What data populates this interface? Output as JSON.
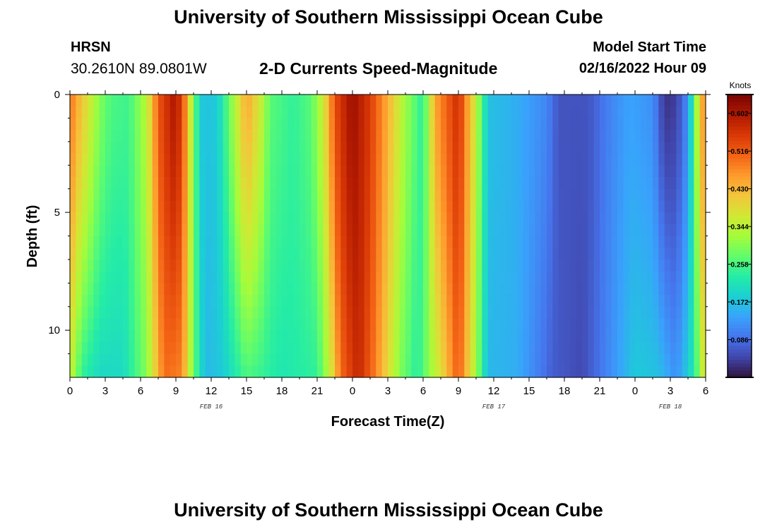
{
  "header": {
    "title": "University of Southern Mississippi Ocean Cube",
    "station_id": "HRSN",
    "station_coords": "30.2610N  89.0801W",
    "subtitle": "2-D Currents Speed-Magnitude",
    "model_start_label": "Model Start Time",
    "model_start_value": "02/16/2022 Hour 09"
  },
  "footer": {
    "title": "University of Southern Mississippi Ocean Cube"
  },
  "chart_data": {
    "type": "heatmap",
    "title": "2-D Currents Speed-Magnitude",
    "xlabel": "Forecast Time(Z)",
    "ylabel": "Depth (ft)",
    "x_start": "02/16/2022 00Z",
    "x_range_hours": [
      0,
      54
    ],
    "x_tick_labels": [
      "0",
      "3",
      "6",
      "9",
      "12",
      "15",
      "18",
      "21",
      "0",
      "3",
      "6",
      "9",
      "12",
      "15",
      "18",
      "21",
      "0",
      "3",
      "6"
    ],
    "date_labels": [
      {
        "label": "FEB 16",
        "hour": 12
      },
      {
        "label": "FEB 17",
        "hour": 36
      },
      {
        "label": "FEB 18",
        "hour": 51
      }
    ],
    "y_range_ft": [
      0,
      12
    ],
    "y_reversed": true,
    "y_tick_labels": [
      "0",
      "5",
      "10"
    ],
    "colorbar": {
      "label": "Knots",
      "range": [
        0.0,
        0.645
      ],
      "tick_labels": [
        "0.602",
        "0.516",
        "0.430",
        "0.344",
        "0.258",
        "0.172",
        "0.086"
      ],
      "colors": [
        "#30123b",
        "#4145ab",
        "#4675ed",
        "#39a2fc",
        "#1bcfd4",
        "#24eca6",
        "#61fc6c",
        "#a4fc3b",
        "#d1e834",
        "#f3c63a",
        "#fe9b2d",
        "#f36315",
        "#d93806",
        "#b11901",
        "#7a0403"
      ]
    },
    "surface_speed_knots": [
      {
        "hour": 0,
        "value": 0.5
      },
      {
        "hour": 0.5,
        "value": 0.45
      },
      {
        "hour": 1.5,
        "value": 0.38
      },
      {
        "hour": 2.5,
        "value": 0.3
      },
      {
        "hour": 3.5,
        "value": 0.26
      },
      {
        "hour": 5,
        "value": 0.25
      },
      {
        "hour": 6.5,
        "value": 0.34
      },
      {
        "hour": 7.5,
        "value": 0.52
      },
      {
        "hour": 9,
        "value": 0.61
      },
      {
        "hour": 10,
        "value": 0.45
      },
      {
        "hour": 10.5,
        "value": 0.28
      },
      {
        "hour": 11.3,
        "value": 0.17
      },
      {
        "hour": 12.5,
        "value": 0.18
      },
      {
        "hour": 13.5,
        "value": 0.28
      },
      {
        "hour": 15,
        "value": 0.45
      },
      {
        "hour": 16,
        "value": 0.38
      },
      {
        "hour": 17,
        "value": 0.27
      },
      {
        "hour": 19,
        "value": 0.24
      },
      {
        "hour": 20.5,
        "value": 0.27
      },
      {
        "hour": 21.5,
        "value": 0.36
      },
      {
        "hour": 22.5,
        "value": 0.53
      },
      {
        "hour": 24,
        "value": 0.62
      },
      {
        "hour": 25.5,
        "value": 0.55
      },
      {
        "hour": 27,
        "value": 0.44
      },
      {
        "hour": 28.5,
        "value": 0.32
      },
      {
        "hour": 30,
        "value": 0.23
      },
      {
        "hour": 31,
        "value": 0.45
      },
      {
        "hour": 33,
        "value": 0.57
      },
      {
        "hour": 34.5,
        "value": 0.35
      },
      {
        "hour": 35.5,
        "value": 0.17
      },
      {
        "hour": 38,
        "value": 0.15
      },
      {
        "hour": 40.5,
        "value": 0.11
      },
      {
        "hour": 41.5,
        "value": 0.06
      },
      {
        "hour": 44,
        "value": 0.06
      },
      {
        "hour": 46,
        "value": 0.11
      },
      {
        "hour": 47.5,
        "value": 0.14
      },
      {
        "hour": 49.5,
        "value": 0.12
      },
      {
        "hour": 50.5,
        "value": 0.03
      },
      {
        "hour": 51.5,
        "value": 0.04
      },
      {
        "hour": 52.5,
        "value": 0.12
      },
      {
        "hour": 53.5,
        "value": 0.4
      },
      {
        "hour": 54,
        "value": 0.5
      }
    ],
    "bottom_speed_knots": [
      {
        "hour": 0,
        "value": 0.36
      },
      {
        "hour": 1,
        "value": 0.24
      },
      {
        "hour": 2.5,
        "value": 0.2
      },
      {
        "hour": 4.5,
        "value": 0.2
      },
      {
        "hour": 6.5,
        "value": 0.3
      },
      {
        "hour": 8,
        "value": 0.5
      },
      {
        "hour": 9.5,
        "value": 0.48
      },
      {
        "hour": 10.5,
        "value": 0.28
      },
      {
        "hour": 11.5,
        "value": 0.16
      },
      {
        "hour": 13,
        "value": 0.18
      },
      {
        "hour": 15,
        "value": 0.26
      },
      {
        "hour": 18,
        "value": 0.22
      },
      {
        "hour": 21,
        "value": 0.24
      },
      {
        "hour": 22,
        "value": 0.34
      },
      {
        "hour": 23,
        "value": 0.5
      },
      {
        "hour": 24.5,
        "value": 0.58
      },
      {
        "hour": 26,
        "value": 0.48
      },
      {
        "hour": 28,
        "value": 0.3
      },
      {
        "hour": 29.5,
        "value": 0.23
      },
      {
        "hour": 31.5,
        "value": 0.38
      },
      {
        "hour": 33,
        "value": 0.52
      },
      {
        "hour": 34.5,
        "value": 0.32
      },
      {
        "hour": 35.5,
        "value": 0.16
      },
      {
        "hour": 38,
        "value": 0.15
      },
      {
        "hour": 41,
        "value": 0.07
      },
      {
        "hour": 43.5,
        "value": 0.05
      },
      {
        "hour": 46,
        "value": 0.12
      },
      {
        "hour": 48,
        "value": 0.18
      },
      {
        "hour": 50,
        "value": 0.17
      },
      {
        "hour": 51.5,
        "value": 0.12
      },
      {
        "hour": 53,
        "value": 0.22
      },
      {
        "hour": 54,
        "value": 0.4
      }
    ]
  }
}
